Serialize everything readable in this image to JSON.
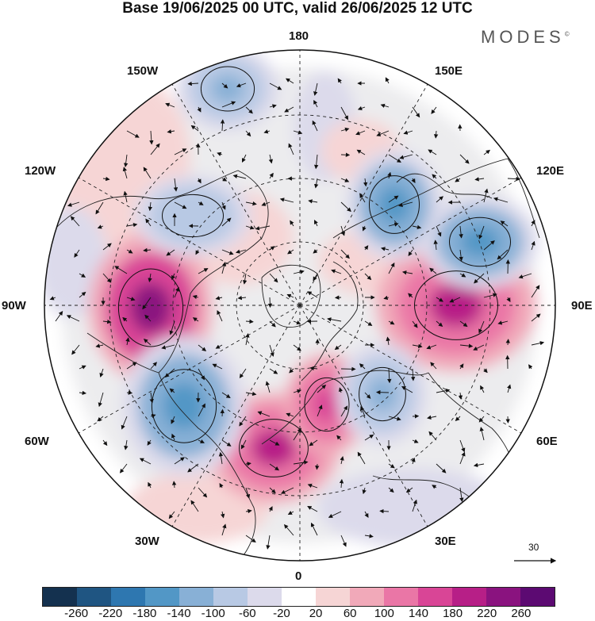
{
  "header": {
    "title": "Base 19/06/2025 00 UTC, valid 26/06/2025 12 UTC",
    "brand": "MODES",
    "brand_mark": "©"
  },
  "map": {
    "projection": "north-polar-stereographic",
    "longitude_labels": [
      "180",
      "150W",
      "150E",
      "120W",
      "120E",
      "90W",
      "90E",
      "60W",
      "60E",
      "30W",
      "30E",
      "0"
    ],
    "wind_vector_reference": "30",
    "anomaly_centers": [
      {
        "region": "Canada (Hudson Bay)",
        "sign": "positive",
        "level": 220
      },
      {
        "region": "Central Siberia",
        "sign": "positive",
        "level": 180
      },
      {
        "region": "North Atlantic / British Isles",
        "sign": "positive",
        "level": 180
      },
      {
        "region": "Scandinavia",
        "sign": "positive",
        "level": 140
      },
      {
        "region": "Northwest Atlantic / Labrador",
        "sign": "negative",
        "level": -180
      },
      {
        "region": "East Siberia / Laptev",
        "sign": "negative",
        "level": -180
      },
      {
        "region": "Okhotsk / Kamchatka",
        "sign": "negative",
        "level": -180
      },
      {
        "region": "Western Russia",
        "sign": "negative",
        "level": -140
      },
      {
        "region": "Gulf of Alaska",
        "sign": "negative",
        "level": -140
      },
      {
        "region": "Bering Sea",
        "sign": "negative",
        "level": -100
      }
    ]
  },
  "colorbar": {
    "labels": [
      "-260",
      "-220",
      "-180",
      "-140",
      "-100",
      "-60",
      "-20",
      "20",
      "60",
      "100",
      "140",
      "180",
      "220",
      "260"
    ],
    "colors": [
      "#14314f",
      "#1f5582",
      "#2e77b0",
      "#5297c6",
      "#88b0d6",
      "#b8c9e4",
      "#dcdaeb",
      "#ffffff",
      "#f6d5d5",
      "#f1a9b9",
      "#ea76a6",
      "#d94596",
      "#b71f87",
      "#8a137f",
      "#5c0a72"
    ]
  }
}
